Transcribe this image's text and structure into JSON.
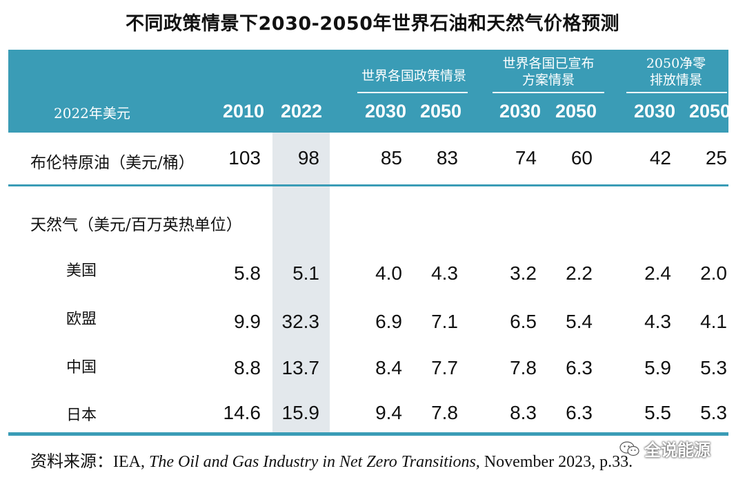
{
  "title": "不同政策情景下2030-2050年世界石油和天然气价格预测",
  "header": {
    "unit": "2022年美元",
    "groups": [
      {
        "label_lines": [
          "世界各国政策情景"
        ]
      },
      {
        "label_lines": [
          "世界各国已宣布",
          "方案情景"
        ]
      },
      {
        "label_lines": [
          "2050净零",
          "排放情景"
        ]
      }
    ],
    "years": [
      "2010",
      "2022",
      "2030",
      "2050",
      "2030",
      "2050",
      "2030",
      "2050"
    ]
  },
  "rows": {
    "brent": {
      "label": "布伦特原油（美元/桶）",
      "values": [
        "103",
        "98",
        "85",
        "83",
        "74",
        "60",
        "42",
        "25"
      ]
    },
    "gas_heading": {
      "label": "天然气（美元/百万英热单位）"
    },
    "usa": {
      "label": "美国",
      "values": [
        "5.8",
        "5.1",
        "4.0",
        "4.3",
        "3.2",
        "2.2",
        "2.4",
        "2.0"
      ]
    },
    "eu": {
      "label": "欧盟",
      "values": [
        "9.9",
        "32.3",
        "6.9",
        "7.1",
        "6.5",
        "5.4",
        "4.3",
        "4.1"
      ]
    },
    "china": {
      "label": "中国",
      "values": [
        "8.8",
        "13.7",
        "8.4",
        "7.7",
        "7.8",
        "6.3",
        "5.9",
        "5.3"
      ]
    },
    "japan": {
      "label": "日本",
      "values": [
        "14.6",
        "15.9",
        "9.4",
        "7.8",
        "8.3",
        "6.3",
        "5.5",
        "5.3"
      ]
    }
  },
  "source": {
    "prefix": "资料来源：IEA, ",
    "italic": "The Oil and Gas Industry in Net Zero Transitions,",
    "suffix": " November 2023, p.33."
  },
  "watermark": "全说能源",
  "colors": {
    "header_bg": "#3a9cb6",
    "shade": "#e3e8ec"
  }
}
